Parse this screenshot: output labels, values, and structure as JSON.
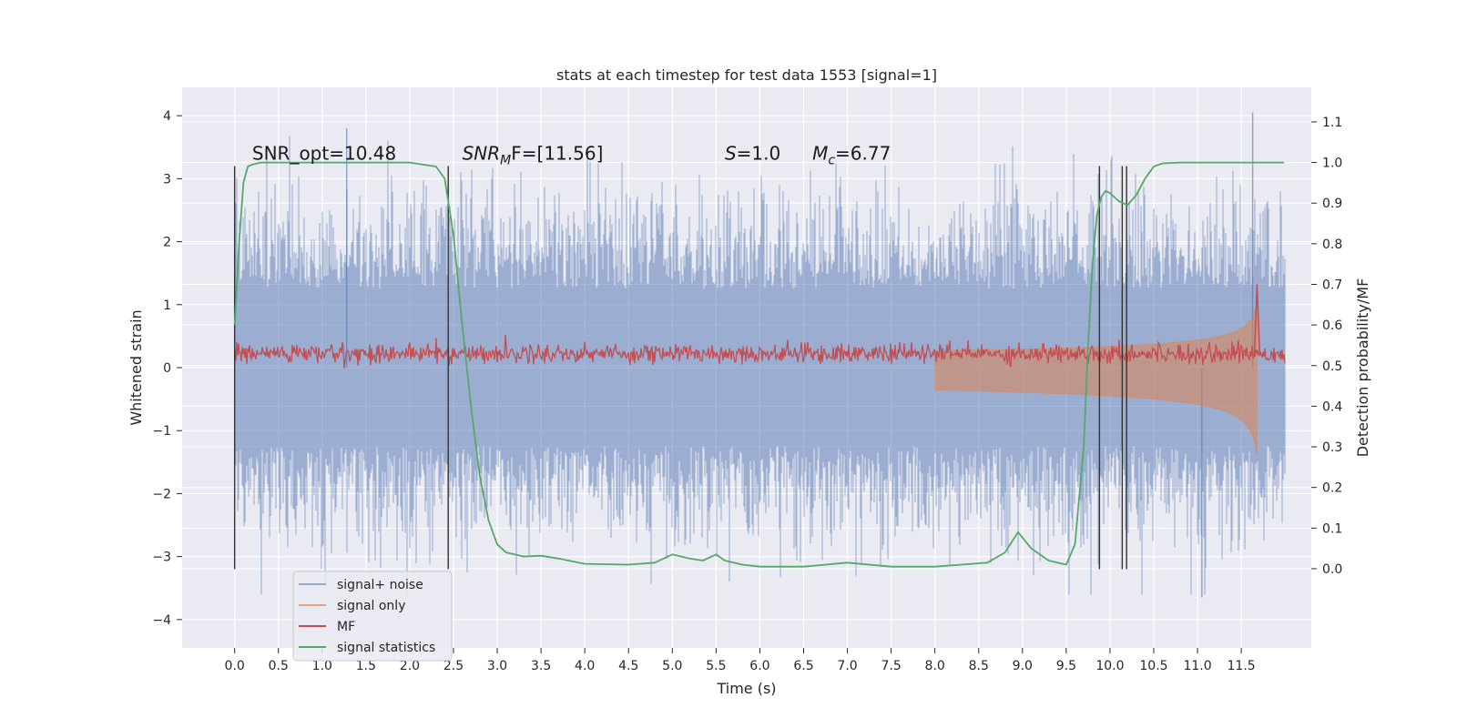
{
  "chart_data": {
    "type": "line",
    "title": "stats at each timestep for test data 1553 [signal=1]",
    "xlabel": "Time (s)",
    "ylabel": "Whitened strain",
    "y2label": "Detection probability/MF",
    "xlim": [
      -0.6,
      12.3
    ],
    "ylim": [
      -4.45,
      4.45
    ],
    "y2lim": [
      -0.195,
      1.185
    ],
    "x_ticks": [
      "0.0",
      "0.5",
      "1.0",
      "1.5",
      "2.0",
      "2.5",
      "3.0",
      "3.5",
      "4.0",
      "4.5",
      "5.0",
      "5.5",
      "6.0",
      "6.5",
      "7.0",
      "7.5",
      "8.0",
      "8.5",
      "9.0",
      "9.5",
      "10.0",
      "10.5",
      "11.0",
      "11.5"
    ],
    "y_ticks": [
      "4",
      "3",
      "2",
      "1",
      "0",
      "−1",
      "−2",
      "−3",
      "−4"
    ],
    "y2_ticks": [
      "1.1",
      "1.0",
      "0.9",
      "0.8",
      "0.7",
      "0.6",
      "0.5",
      "0.4",
      "0.3",
      "0.2",
      "0.1",
      "0.0"
    ],
    "grid": true,
    "legend_position": "lower-left",
    "annotations": [
      {
        "prefix": "SNR_opt=10.48",
        "x": 0.2,
        "y": 3.3
      },
      {
        "prefix": "SNR",
        "sub": "M",
        "suffix": "F=[11.56]",
        "x": 2.6,
        "y": 3.3
      },
      {
        "prefix": "S",
        "suffix": "=1.0",
        "x": 5.6,
        "y": 3.3
      },
      {
        "prefix": "M",
        "sub": "c",
        "suffix": "=6.77",
        "x": 6.6,
        "y": 3.3
      }
    ],
    "vertical_markers_s": [
      0.0,
      2.44,
      9.88,
      10.14,
      10.19
    ],
    "series": [
      {
        "name": "signal+ noise",
        "color": "#4c72b0",
        "axis": "left",
        "description_values": {
          "x_start": 0.0,
          "x_end": 12.0,
          "envelope_abs": 3.3,
          "peak_max": 4.05,
          "peak_min": -3.65
        }
      },
      {
        "name": "signal only",
        "color": "#dd8452",
        "axis": "left",
        "chirp": {
          "t_start": 8.0,
          "t_merge": 11.68,
          "final_amp": 1.4
        }
      },
      {
        "name": "MF",
        "color": "#c44e52",
        "axis": "right",
        "baseline": 0.53,
        "spike": {
          "x": 11.68,
          "y": 0.7
        }
      },
      {
        "name": "signal statistics",
        "color": "#55a868",
        "axis": "right",
        "x": [
          0.0,
          0.05,
          0.1,
          0.15,
          0.2,
          0.3,
          0.5,
          1.0,
          1.5,
          2.0,
          2.3,
          2.4,
          2.5,
          2.6,
          2.7,
          2.8,
          2.9,
          3.0,
          3.1,
          3.2,
          3.3,
          3.5,
          3.7,
          4.0,
          4.5,
          4.8,
          5.0,
          5.2,
          5.35,
          5.5,
          5.6,
          5.8,
          6.0,
          6.5,
          7.0,
          7.5,
          8.0,
          8.3,
          8.6,
          8.8,
          8.95,
          9.1,
          9.3,
          9.5,
          9.6,
          9.7,
          9.75,
          9.8,
          9.85,
          9.9,
          9.95,
          10.0,
          10.1,
          10.2,
          10.3,
          10.4,
          10.5,
          10.6,
          10.8,
          11.0,
          11.5,
          11.99
        ],
        "y": [
          0.6,
          0.8,
          0.95,
          0.99,
          0.995,
          1.0,
          1.0,
          1.0,
          1.0,
          1.0,
          0.99,
          0.96,
          0.82,
          0.6,
          0.4,
          0.23,
          0.12,
          0.06,
          0.04,
          0.035,
          0.03,
          0.032,
          0.025,
          0.012,
          0.01,
          0.015,
          0.035,
          0.025,
          0.02,
          0.035,
          0.02,
          0.01,
          0.005,
          0.005,
          0.015,
          0.005,
          0.005,
          0.01,
          0.015,
          0.04,
          0.09,
          0.05,
          0.02,
          0.01,
          0.06,
          0.3,
          0.55,
          0.75,
          0.87,
          0.915,
          0.93,
          0.925,
          0.905,
          0.895,
          0.92,
          0.96,
          0.99,
          0.998,
          1.0,
          1.0,
          1.0,
          1.0
        ]
      }
    ]
  }
}
